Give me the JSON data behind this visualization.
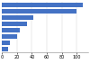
{
  "categories": [
    "",
    "",
    "",
    "",
    "",
    "",
    "",
    ""
  ],
  "values": [
    107644,
    99220,
    41948,
    33865,
    24503,
    20423,
    10440,
    7912
  ],
  "bar_color": "#4472c4",
  "xlim": [
    0,
    115000
  ],
  "background_color": "#ffffff",
  "bar_height": 0.75,
  "xtick_fontsize": 3.5,
  "ytick_fontsize": 3.5,
  "xticks": [
    0,
    20000,
    40000,
    60000,
    80000,
    100000
  ]
}
